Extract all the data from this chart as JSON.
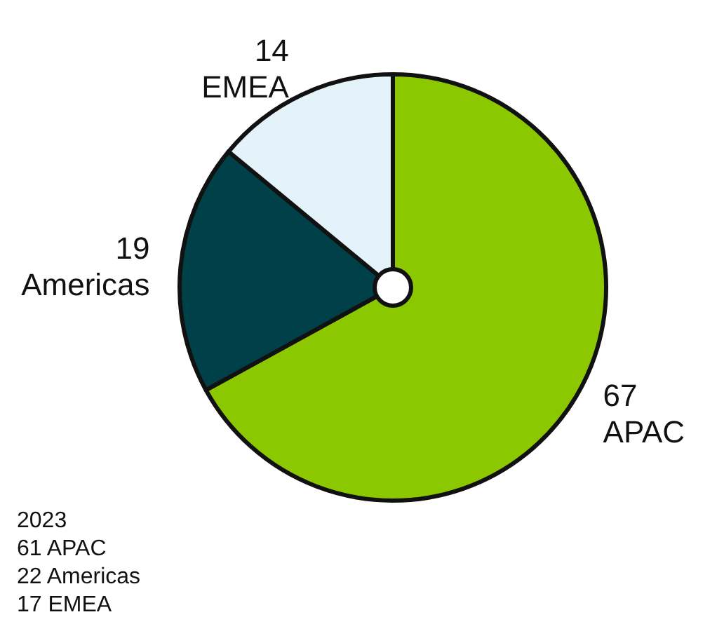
{
  "chart_data": {
    "type": "pie",
    "categories": [
      "APAC",
      "Americas",
      "EMEA"
    ],
    "values": [
      67,
      19,
      14
    ],
    "colors": [
      "#8cc800",
      "#004048",
      "#e3f3f9"
    ],
    "data_labels": true,
    "annotations": [
      "2023",
      "61 APAC",
      "22 Americas",
      "17 EMEA"
    ]
  }
}
